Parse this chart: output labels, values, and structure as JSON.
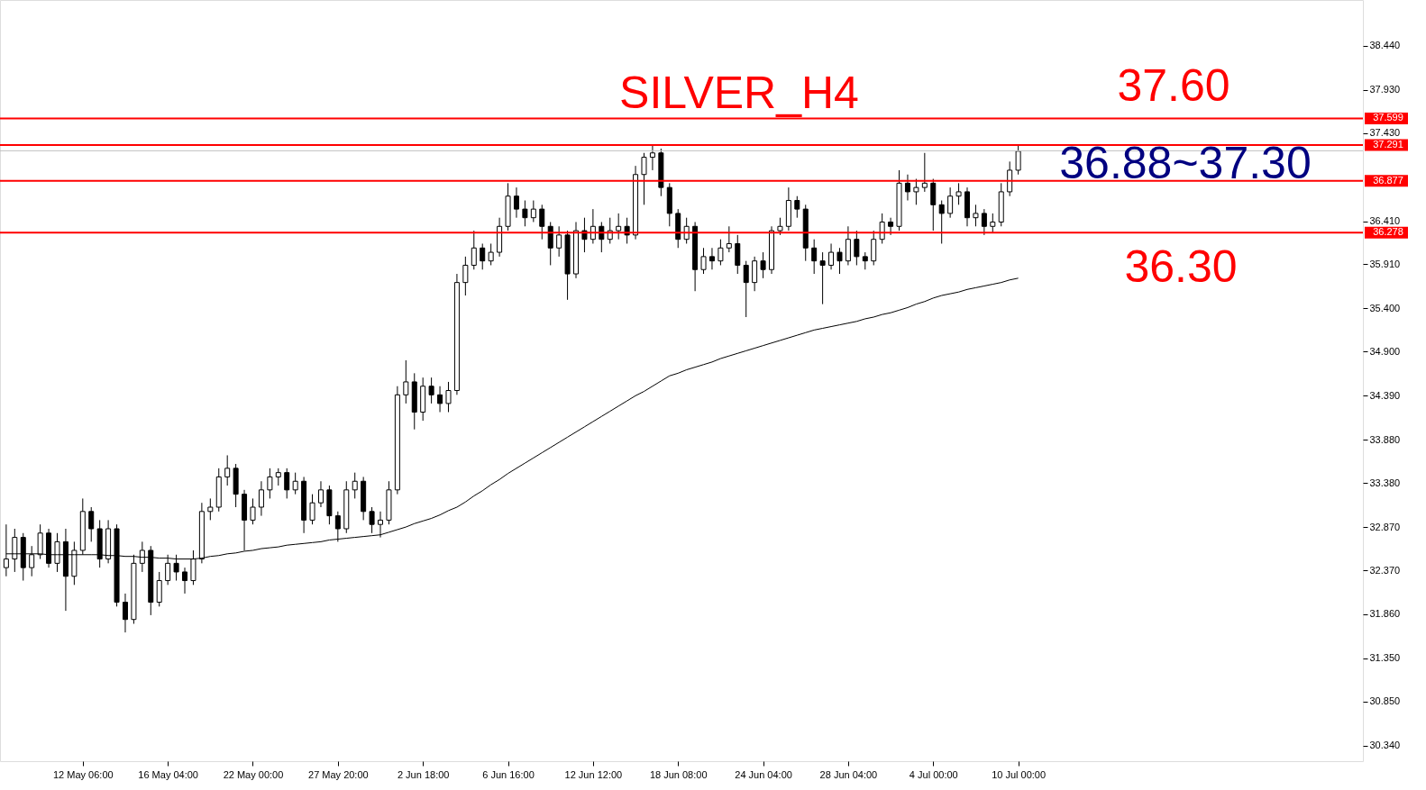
{
  "chart_data": {
    "type": "candlestick",
    "color": "#000000",
    "categories": [
      null,
      null,
      null,
      null,
      null,
      null,
      null,
      null,
      null,
      "12 May 06:00",
      null,
      null,
      null,
      null,
      null,
      null,
      null,
      null,
      null,
      "16 May 04:00",
      null,
      null,
      null,
      null,
      null,
      null,
      null,
      null,
      null,
      "22 May 00:00",
      null,
      null,
      null,
      null,
      null,
      null,
      null,
      null,
      null,
      "27 May 20:00",
      null,
      null,
      null,
      null,
      null,
      null,
      null,
      null,
      null,
      "2 Jun 18:00",
      null,
      null,
      null,
      null,
      null,
      null,
      null,
      null,
      null,
      "6 Jun 16:00",
      null,
      null,
      null,
      null,
      null,
      null,
      null,
      null,
      null,
      "12 Jun 12:00",
      null,
      null,
      null,
      null,
      null,
      null,
      null,
      null,
      null,
      "18 Jun 08:00",
      null,
      null,
      null,
      null,
      null,
      null,
      null,
      null,
      null,
      "24 Jun 04:00",
      null,
      null,
      null,
      null,
      null,
      null,
      null,
      null,
      null,
      "28 Jun 04:00",
      null,
      null,
      null,
      null,
      null,
      null,
      null,
      null,
      null,
      "4 Jul 00:00",
      null,
      null,
      null,
      null,
      null,
      null,
      null,
      null,
      null,
      "10 Jul 00:00"
    ],
    "ohlc": [
      [
        32.4,
        32.9,
        32.3,
        32.5
      ],
      [
        32.5,
        32.85,
        32.35,
        32.75
      ],
      [
        32.75,
        32.8,
        32.25,
        32.4
      ],
      [
        32.4,
        32.65,
        32.3,
        32.55
      ],
      [
        32.55,
        32.9,
        32.5,
        32.8
      ],
      [
        32.8,
        32.85,
        32.4,
        32.45
      ],
      [
        32.45,
        32.8,
        32.35,
        32.7
      ],
      [
        32.7,
        32.85,
        31.9,
        32.3
      ],
      [
        32.3,
        32.7,
        32.2,
        32.6
      ],
      [
        32.6,
        33.2,
        32.55,
        33.05
      ],
      [
        33.05,
        33.1,
        32.7,
        32.85
      ],
      [
        32.85,
        32.95,
        32.4,
        32.5
      ],
      [
        32.5,
        32.95,
        32.45,
        32.85
      ],
      [
        32.85,
        32.9,
        31.95,
        32.0
      ],
      [
        32.0,
        32.1,
        31.65,
        31.8
      ],
      [
        31.8,
        32.55,
        31.75,
        32.45
      ],
      [
        32.45,
        32.7,
        32.35,
        32.6
      ],
      [
        32.6,
        32.65,
        31.85,
        32.0
      ],
      [
        32.0,
        32.35,
        31.95,
        32.25
      ],
      [
        32.25,
        32.55,
        32.2,
        32.45
      ],
      [
        32.45,
        32.55,
        32.25,
        32.35
      ],
      [
        32.35,
        32.4,
        32.1,
        32.25
      ],
      [
        32.25,
        32.6,
        32.2,
        32.5
      ],
      [
        32.5,
        33.15,
        32.45,
        33.05
      ],
      [
        33.05,
        33.2,
        32.95,
        33.1
      ],
      [
        33.1,
        33.55,
        33.05,
        33.45
      ],
      [
        33.45,
        33.7,
        33.35,
        33.55
      ],
      [
        33.55,
        33.6,
        33.1,
        33.25
      ],
      [
        33.25,
        33.3,
        32.6,
        32.95
      ],
      [
        32.95,
        33.2,
        32.9,
        33.1
      ],
      [
        33.1,
        33.4,
        33.0,
        33.3
      ],
      [
        33.3,
        33.55,
        33.2,
        33.45
      ],
      [
        33.45,
        33.55,
        33.35,
        33.5
      ],
      [
        33.5,
        33.55,
        33.2,
        33.3
      ],
      [
        33.3,
        33.5,
        33.25,
        33.4
      ],
      [
        33.4,
        33.45,
        32.8,
        32.95
      ],
      [
        32.95,
        33.25,
        32.9,
        33.15
      ],
      [
        33.15,
        33.4,
        33.1,
        33.3
      ],
      [
        33.3,
        33.35,
        32.9,
        33.0
      ],
      [
        33.0,
        33.05,
        32.7,
        32.85
      ],
      [
        32.85,
        33.4,
        32.8,
        33.3
      ],
      [
        33.3,
        33.5,
        33.2,
        33.4
      ],
      [
        33.4,
        33.45,
        32.95,
        33.05
      ],
      [
        33.05,
        33.1,
        32.8,
        32.9
      ],
      [
        32.9,
        33.05,
        32.75,
        32.95
      ],
      [
        32.95,
        33.4,
        32.9,
        33.3
      ],
      [
        33.3,
        34.5,
        33.25,
        34.4
      ],
      [
        34.4,
        34.8,
        34.3,
        34.55
      ],
      [
        34.55,
        34.65,
        34.0,
        34.2
      ],
      [
        34.2,
        34.6,
        34.1,
        34.5
      ],
      [
        34.5,
        34.6,
        34.3,
        34.4
      ],
      [
        34.4,
        34.5,
        34.2,
        34.3
      ],
      [
        34.3,
        34.55,
        34.2,
        34.45
      ],
      [
        34.45,
        35.8,
        34.4,
        35.7
      ],
      [
        35.7,
        36.0,
        35.55,
        35.9
      ],
      [
        35.9,
        36.3,
        35.85,
        36.1
      ],
      [
        36.1,
        36.15,
        35.85,
        35.95
      ],
      [
        35.95,
        36.15,
        35.9,
        36.05
      ],
      [
        36.05,
        36.45,
        36.0,
        36.35
      ],
      [
        36.35,
        36.85,
        36.3,
        36.7
      ],
      [
        36.7,
        36.8,
        36.45,
        36.55
      ],
      [
        36.55,
        36.65,
        36.35,
        36.45
      ],
      [
        36.45,
        36.65,
        36.4,
        36.55
      ],
      [
        36.55,
        36.6,
        36.2,
        36.35
      ],
      [
        36.35,
        36.4,
        35.9,
        36.1
      ],
      [
        36.1,
        36.35,
        36.0,
        36.25
      ],
      [
        36.25,
        36.3,
        35.5,
        35.8
      ],
      [
        35.8,
        36.4,
        35.75,
        36.3
      ],
      [
        36.3,
        36.45,
        36.05,
        36.2
      ],
      [
        36.2,
        36.55,
        36.15,
        36.35
      ],
      [
        36.35,
        36.4,
        36.05,
        36.2
      ],
      [
        36.2,
        36.45,
        36.15,
        36.3
      ],
      [
        36.3,
        36.5,
        36.2,
        36.35
      ],
      [
        36.35,
        36.45,
        36.15,
        36.25
      ],
      [
        36.25,
        37.05,
        36.2,
        36.95
      ],
      [
        36.95,
        37.2,
        36.6,
        37.15
      ],
      [
        37.15,
        37.3,
        37.0,
        37.2
      ],
      [
        37.2,
        37.25,
        36.7,
        36.8
      ],
      [
        36.8,
        36.85,
        36.35,
        36.5
      ],
      [
        36.5,
        36.55,
        36.1,
        36.2
      ],
      [
        36.2,
        36.45,
        36.15,
        36.35
      ],
      [
        36.35,
        36.4,
        35.6,
        35.85
      ],
      [
        35.85,
        36.1,
        35.8,
        36.0
      ],
      [
        36.0,
        36.1,
        35.85,
        35.95
      ],
      [
        35.95,
        36.2,
        35.9,
        36.1
      ],
      [
        36.1,
        36.35,
        36.05,
        36.15
      ],
      [
        36.15,
        36.25,
        35.8,
        35.9
      ],
      [
        35.9,
        35.95,
        35.3,
        35.7
      ],
      [
        35.7,
        36.0,
        35.6,
        35.95
      ],
      [
        35.95,
        36.05,
        35.75,
        35.85
      ],
      [
        35.85,
        36.35,
        35.8,
        36.3
      ],
      [
        36.3,
        36.45,
        36.25,
        36.35
      ],
      [
        36.35,
        36.8,
        36.3,
        36.65
      ],
      [
        36.65,
        36.7,
        36.45,
        36.55
      ],
      [
        36.55,
        36.6,
        35.95,
        36.1
      ],
      [
        36.1,
        36.2,
        35.8,
        35.95
      ],
      [
        35.95,
        36.05,
        35.45,
        35.9
      ],
      [
        35.9,
        36.15,
        35.85,
        36.05
      ],
      [
        36.05,
        36.1,
        35.8,
        35.95
      ],
      [
        35.95,
        36.35,
        35.9,
        36.2
      ],
      [
        36.2,
        36.3,
        35.9,
        36.0
      ],
      [
        36.0,
        36.05,
        35.85,
        35.95
      ],
      [
        35.95,
        36.3,
        35.9,
        36.2
      ],
      [
        36.2,
        36.5,
        36.15,
        36.4
      ],
      [
        36.4,
        36.45,
        36.25,
        36.35
      ],
      [
        36.35,
        37.0,
        36.3,
        36.85
      ],
      [
        36.85,
        36.95,
        36.65,
        36.75
      ],
      [
        36.75,
        36.9,
        36.6,
        36.8
      ],
      [
        36.8,
        37.2,
        36.75,
        36.85
      ],
      [
        36.85,
        36.9,
        36.3,
        36.6
      ],
      [
        36.6,
        36.65,
        36.15,
        36.5
      ],
      [
        36.5,
        36.8,
        36.45,
        36.7
      ],
      [
        36.7,
        36.85,
        36.6,
        36.75
      ],
      [
        36.75,
        36.8,
        36.35,
        36.45
      ],
      [
        36.45,
        36.6,
        36.35,
        36.5
      ],
      [
        36.5,
        36.55,
        36.25,
        36.35
      ],
      [
        36.35,
        36.5,
        36.28,
        36.4
      ],
      [
        36.4,
        36.85,
        36.35,
        36.75
      ],
      [
        36.75,
        37.1,
        36.7,
        37.0
      ],
      [
        37.0,
        37.29,
        36.95,
        37.22
      ]
    ],
    "series": [
      {
        "type": "line",
        "color": "#000000",
        "values": [
          32.56,
          32.56,
          32.56,
          32.56,
          32.56,
          32.55,
          32.55,
          32.55,
          32.55,
          32.55,
          32.55,
          32.55,
          32.54,
          32.54,
          32.53,
          32.53,
          32.52,
          32.52,
          32.51,
          32.51,
          32.5,
          32.5,
          32.5,
          32.51,
          32.53,
          32.54,
          32.56,
          32.57,
          32.59,
          32.6,
          32.62,
          32.63,
          32.64,
          32.66,
          32.67,
          32.68,
          32.69,
          32.7,
          32.72,
          32.73,
          32.74,
          32.75,
          32.76,
          32.77,
          32.78,
          32.81,
          32.84,
          32.87,
          32.91,
          32.94,
          32.97,
          33.01,
          33.06,
          33.1,
          33.16,
          33.23,
          33.29,
          33.36,
          33.42,
          33.49,
          33.55,
          33.61,
          33.67,
          33.73,
          33.79,
          33.85,
          33.91,
          33.97,
          34.03,
          34.09,
          34.15,
          34.21,
          34.27,
          34.33,
          34.39,
          34.44,
          34.5,
          34.56,
          34.62,
          34.65,
          34.69,
          34.72,
          34.75,
          34.78,
          34.82,
          34.85,
          34.88,
          34.91,
          34.94,
          34.97,
          35.0,
          35.03,
          35.06,
          35.09,
          35.12,
          35.15,
          35.17,
          35.19,
          35.21,
          35.23,
          35.25,
          35.28,
          35.3,
          35.33,
          35.35,
          35.38,
          35.41,
          35.45,
          35.48,
          35.52,
          35.55,
          35.57,
          35.59,
          35.62,
          35.64,
          35.66,
          35.68,
          35.7,
          35.73,
          35.75
        ]
      }
    ],
    "ylim": [
      30.16,
      38.97
    ],
    "yticks": [
      {
        "value": 30.34,
        "label": "30.340"
      },
      {
        "value": 30.85,
        "label": "30.850"
      },
      {
        "value": 31.35,
        "label": "31.350"
      },
      {
        "value": 31.86,
        "label": "31.860"
      },
      {
        "value": 32.37,
        "label": "32.370"
      },
      {
        "value": 32.87,
        "label": "32.870"
      },
      {
        "value": 33.38,
        "label": "33.380"
      },
      {
        "value": 33.88,
        "label": "33.880"
      },
      {
        "value": 34.39,
        "label": "34.390"
      },
      {
        "value": 34.9,
        "label": "34.900"
      },
      {
        "value": 35.4,
        "label": "35.400"
      },
      {
        "value": 35.91,
        "label": "35.910"
      },
      {
        "value": 36.41,
        "label": "36.410"
      },
      {
        "value": 37.43,
        "label": "37.430"
      },
      {
        "value": 37.93,
        "label": "37.930"
      },
      {
        "value": 38.44,
        "label": "38.440"
      }
    ],
    "ref_lines": [
      {
        "axis": "y",
        "value": 37.599,
        "label": "37.599",
        "color": "#ff0000"
      },
      {
        "axis": "y",
        "value": 37.291,
        "label": "37.291",
        "color": "#ff0000"
      },
      {
        "axis": "y",
        "value": 37.225,
        "label": null,
        "color": "#c0c0c0"
      },
      {
        "axis": "y",
        "value": 36.877,
        "label": "36.877",
        "color": "#ff0000"
      },
      {
        "axis": "y",
        "value": 36.278,
        "label": "36.278",
        "color": "#ff0000"
      }
    ],
    "annotations": [
      "SILVER_H4",
      "37.60",
      "36.88~37.30",
      "36.30"
    ],
    "grid": false
  }
}
